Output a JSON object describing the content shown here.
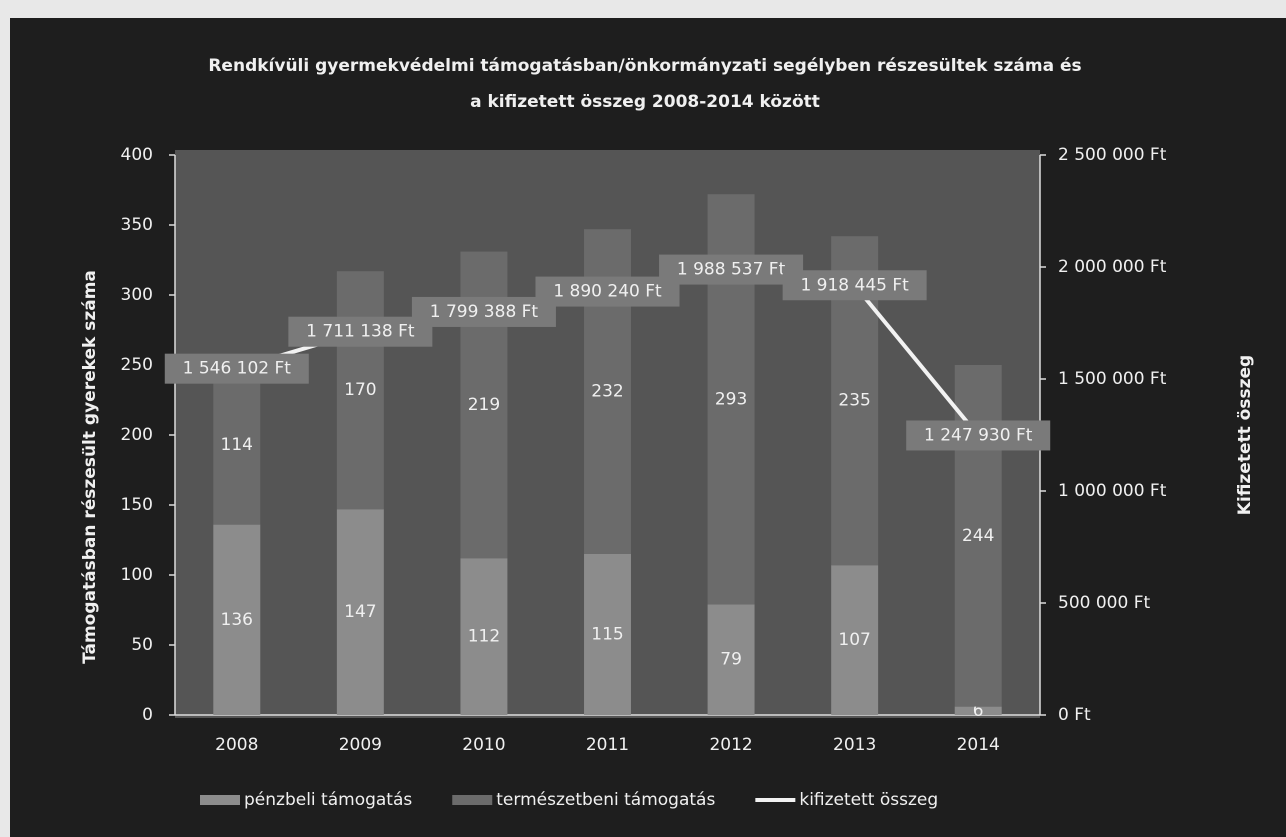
{
  "chart_data": {
    "type": "bar",
    "title": "Rendkívüli gyermekvédelmi támogatásban/önkormányzati segélyben részesültek száma és a kifizetett összeg 2008-2014 között",
    "categories": [
      "2008",
      "2009",
      "2010",
      "2011",
      "2012",
      "2013",
      "2014"
    ],
    "stacked": true,
    "series": [
      {
        "name": "pénzbeli támogatás",
        "color": "#8c8c8c",
        "values": [
          136,
          147,
          112,
          115,
          79,
          107,
          6
        ]
      },
      {
        "name": "természetbeni támogatás",
        "color": "#6b6b6b",
        "values": [
          114,
          170,
          219,
          232,
          293,
          235,
          244
        ]
      },
      {
        "name": "kifizetett összeg",
        "color": "#f2f2f2",
        "type": "line",
        "axis": "y2",
        "values": [
          1546102,
          1711138,
          1799388,
          1890240,
          1988537,
          1918445,
          1247930
        ],
        "value_labels": [
          "1 546 102 Ft",
          "1 711 138 Ft",
          "1 799 388 Ft",
          "1 890 240 Ft",
          "1 988 537 Ft",
          "1 918 445 Ft",
          "1 247 930 Ft"
        ]
      }
    ],
    "ylabel": "Támogatásban részesült gyerekek száma",
    "y2label": "Kifizetett összeg",
    "ylim": [
      0,
      400
    ],
    "yticks": [
      0,
      50,
      100,
      150,
      200,
      250,
      300,
      350,
      400
    ],
    "y2lim": [
      0,
      2500000
    ],
    "y2ticks": [
      {
        "value": 0,
        "label": "0 Ft"
      },
      {
        "value": 500000,
        "label": "500 000 Ft"
      },
      {
        "value": 1000000,
        "label": "1 000 000 Ft"
      },
      {
        "value": 1500000,
        "label": "1 500 000 Ft"
      },
      {
        "value": 2000000,
        "label": "2 000 000 Ft"
      },
      {
        "value": 2500000,
        "label": "2 500 000 Ft"
      }
    ],
    "grid": false,
    "legend": "bottom"
  }
}
